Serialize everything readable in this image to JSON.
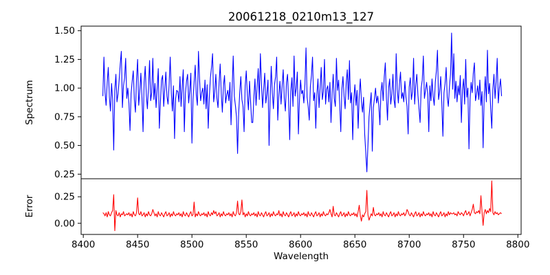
{
  "figure": {
    "title": "20061218_0210m13_127",
    "background": "#ffffff",
    "frame_color": "#000000"
  },
  "chart_data": {
    "type": "line",
    "title": "20061218_0210m13_127",
    "xlabel": "Wavelength",
    "grid": false,
    "legend": null,
    "x_start": 8418,
    "x_step": 1,
    "xlim": [
      8398,
      8803
    ],
    "xticks": [
      {
        "v": 8400,
        "label": "8400"
      },
      {
        "v": 8450,
        "label": "8450"
      },
      {
        "v": 8500,
        "label": "8500"
      },
      {
        "v": 8550,
        "label": "8550"
      },
      {
        "v": 8600,
        "label": "8600"
      },
      {
        "v": 8650,
        "label": "8650"
      },
      {
        "v": 8700,
        "label": "8700"
      },
      {
        "v": 8750,
        "label": "8750"
      },
      {
        "v": 8800,
        "label": "8800"
      }
    ],
    "panels": [
      {
        "name": "spectrum",
        "ylabel": "Spectrum",
        "color": "#0000ff",
        "line_width": 1.1,
        "ylim": [
          0.21,
          1.54
        ],
        "yticks": [
          {
            "v": 0.25,
            "label": "0.25"
          },
          {
            "v": 0.5,
            "label": "0.50"
          },
          {
            "v": 0.75,
            "label": "0.75"
          },
          {
            "v": 1.0,
            "label": "1.00"
          },
          {
            "v": 1.25,
            "label": "1.25"
          },
          {
            "v": 1.5,
            "label": "1.50"
          }
        ],
        "values": [
          0.93,
          1.27,
          0.96,
          0.85,
          1.05,
          1.18,
          0.92,
          0.8,
          1.04,
          0.9,
          0.46,
          0.98,
          1.12,
          0.88,
          0.95,
          1.07,
          1.21,
          1.32,
          0.83,
          1.02,
          1.09,
          1.26,
          0.91,
          1.0,
          0.87,
          0.63,
          0.95,
          1.06,
          1.15,
          0.9,
          0.79,
          1.08,
          1.25,
          0.85,
          0.97,
          1.13,
          0.92,
          0.62,
          1.05,
          1.19,
          0.94,
          0.82,
          1.01,
          1.24,
          0.89,
          0.96,
          1.26,
          0.9,
          1.04,
          0.83,
          1.0,
          1.17,
          0.65,
          0.88,
          1.07,
          1.11,
          0.84,
          0.99,
          1.14,
          0.93,
          0.86,
          1.03,
          1.27,
          0.96,
          0.8,
          1.02,
          0.56,
          0.91,
          0.98,
          0.97,
          0.88,
          1.1,
          0.84,
          1.01,
          1.16,
          0.62,
          0.95,
          1.06,
          1.12,
          0.87,
          0.98,
          1.13,
          0.52,
          0.9,
          1.05,
          1.2,
          0.94,
          0.85,
          1.32,
          1.08,
          0.89,
          0.96,
          1.0,
          0.86,
          1.07,
          0.82,
          1.03,
          0.65,
          0.92,
          1.09,
          1.18,
          1.3,
          0.88,
          0.97,
          1.12,
          0.91,
          0.83,
          1.04,
          1.21,
          0.95,
          0.79,
          1.02,
          1.11,
          0.87,
          0.94,
          0.98,
          0.89,
          1.05,
          0.68,
          1.0,
          1.28,
          0.93,
          0.85,
          0.75,
          0.43,
          0.78,
          0.96,
          1.1,
          0.9,
          0.84,
          0.62,
          1.02,
          1.15,
          0.94,
          0.81,
          1.06,
          0.88,
          0.7,
          0.7,
          0.92,
          1.08,
          0.85,
          1.01,
          1.17,
          0.9,
          1.3,
          1.04,
          0.83,
          0.99,
          1.13,
          0.87,
          0.95,
          1.07,
          0.5,
          0.91,
          1.19,
          0.96,
          0.82,
          1.03,
          1.1,
          1.27,
          0.72,
          0.94,
          1.06,
          0.86,
          1.02,
          1.16,
          0.91,
          0.8,
          1.05,
          1.12,
          0.88,
          0.55,
          0.97,
          1.09,
          0.84,
          1.28,
          0.93,
          1.0,
          1.14,
          0.6,
          0.9,
          1.07,
          0.95,
          0.98,
          0.87,
          1.03,
          1.35,
          0.92,
          0.84,
          0.72,
          1.01,
          1.11,
          1.27,
          0.89,
          0.96,
          0.65,
          0.94,
          1.08,
          0.83,
          1.0,
          1.18,
          0.9,
          0.97,
          1.25,
          0.86,
          0.99,
          1.02,
          0.88,
          1.05,
          0.7,
          0.95,
          1.12,
          0.91,
          0.84,
          1.26,
          0.98,
          1.07,
          0.86,
          0.62,
          0.99,
          1.1,
          0.93,
          0.82,
          1.04,
          1.16,
          0.9,
          1.24,
          0.87,
          0.96,
          0.55,
          0.9,
          1.03,
          0.85,
          0.98,
          0.65,
          0.94,
          1.08,
          0.88,
          0.79,
          0.92,
          0.6,
          0.44,
          0.27,
          0.5,
          0.75,
          0.86,
          0.96,
          0.45,
          0.83,
          0.91,
          1.0,
          0.87,
          0.93,
          0.85,
          0.68,
          0.97,
          1.05,
          0.89,
          1.1,
          1.22,
          0.92,
          0.72,
          1.0,
          1.08,
          0.86,
          0.95,
          1.12,
          0.9,
          0.83,
          1.3,
          0.99,
          0.87,
          1.04,
          1.14,
          0.91,
          0.96,
          0.88,
          1.06,
          0.92,
          0.84,
          0.6,
          1.01,
          1.09,
          0.9,
          0.97,
          1.26,
          0.86,
          1.03,
          1.12,
          0.94,
          0.82,
          0.7,
          1.0,
          1.07,
          1.28,
          0.91,
          0.98,
          1.05,
          0.95,
          0.62,
          1.02,
          0.89,
          1.08,
          0.93,
          0.85,
          1.05,
          1.15,
          1.33,
          0.9,
          0.97,
          1.1,
          0.87,
          0.58,
          0.96,
          1.04,
          1.18,
          0.92,
          0.84,
          1.01,
          1.12,
          1.48,
          0.99,
          1.3,
          0.91,
          1.06,
          0.88,
          1.02,
          0.94,
          1.11,
          0.7,
          0.98,
          1.08,
          0.86,
          1.25,
          0.92,
          1.0,
          0.47,
          0.9,
          1.05,
          0.96,
          1.13,
          1.22,
          0.89,
          0.95,
          1.02,
          0.9,
          1.07,
          0.85,
          0.97,
          0.48,
          0.93,
          1.1,
          0.88,
          1.33,
          0.95,
          1.04,
          0.82,
          0.65,
          0.99,
          1.12,
          0.91,
          1.06,
          1.26,
          0.87,
          1.0,
          1.08,
          0.93
        ]
      },
      {
        "name": "error",
        "ylabel": "Error",
        "color": "#ff0000",
        "line_width": 1.1,
        "ylim": [
          -0.105,
          0.42
        ],
        "yticks": [
          {
            "v": 0.0,
            "label": "0.00"
          },
          {
            "v": 0.25,
            "label": "0.25"
          }
        ],
        "values": [
          0.1,
          0.09,
          0.07,
          0.1,
          0.06,
          0.11,
          0.08,
          0.07,
          0.1,
          0.12,
          0.27,
          -0.07,
          0.12,
          0.08,
          0.07,
          0.1,
          0.06,
          0.09,
          0.08,
          0.11,
          0.07,
          0.08,
          0.09,
          0.08,
          0.1,
          0.07,
          0.09,
          0.06,
          0.11,
          0.08,
          0.07,
          0.1,
          0.24,
          0.09,
          0.08,
          0.11,
          0.07,
          0.08,
          0.1,
          0.06,
          0.09,
          0.07,
          0.11,
          0.08,
          0.07,
          0.09,
          0.13,
          0.1,
          0.07,
          0.09,
          0.06,
          0.11,
          0.08,
          0.07,
          0.1,
          0.08,
          0.06,
          0.09,
          0.11,
          0.07,
          0.08,
          0.1,
          0.06,
          0.09,
          0.07,
          0.11,
          0.08,
          0.07,
          0.09,
          0.08,
          0.1,
          0.07,
          0.09,
          0.06,
          0.11,
          0.08,
          0.07,
          0.1,
          0.08,
          0.06,
          0.09,
          0.11,
          0.07,
          0.08,
          0.2,
          0.06,
          0.09,
          0.07,
          0.11,
          0.08,
          0.07,
          0.09,
          0.08,
          0.1,
          0.07,
          0.09,
          0.06,
          0.11,
          0.08,
          0.07,
          0.1,
          0.08,
          0.12,
          0.09,
          0.11,
          0.07,
          0.08,
          0.1,
          0.06,
          0.09,
          0.07,
          0.11,
          0.08,
          0.07,
          0.09,
          0.08,
          0.1,
          0.07,
          0.09,
          0.06,
          0.11,
          0.08,
          0.07,
          0.1,
          0.21,
          0.09,
          0.08,
          0.11,
          0.22,
          0.08,
          0.1,
          0.06,
          0.09,
          0.07,
          0.11,
          0.08,
          0.07,
          0.09,
          0.08,
          0.1,
          0.07,
          0.09,
          0.06,
          0.11,
          0.08,
          0.07,
          0.1,
          0.08,
          0.06,
          0.09,
          0.11,
          0.07,
          0.08,
          0.1,
          0.06,
          0.09,
          0.07,
          0.11,
          0.08,
          0.07,
          0.09,
          0.08,
          0.12,
          0.07,
          0.09,
          0.06,
          0.11,
          0.08,
          0.07,
          0.1,
          0.08,
          0.06,
          0.09,
          0.11,
          0.07,
          0.08,
          0.1,
          0.06,
          0.09,
          0.07,
          0.11,
          0.08,
          0.07,
          0.09,
          0.08,
          0.1,
          0.07,
          0.09,
          0.06,
          0.11,
          0.08,
          0.07,
          0.1,
          0.08,
          0.06,
          0.09,
          0.11,
          0.07,
          0.08,
          0.1,
          0.06,
          0.09,
          0.07,
          0.11,
          0.08,
          0.07,
          0.09,
          0.08,
          0.1,
          0.13,
          0.09,
          0.06,
          0.16,
          0.08,
          0.07,
          0.1,
          0.08,
          0.06,
          0.09,
          0.11,
          0.07,
          0.08,
          0.1,
          0.06,
          0.09,
          0.07,
          0.11,
          0.08,
          0.07,
          0.09,
          0.08,
          0.1,
          0.07,
          0.09,
          0.06,
          0.11,
          0.17,
          0.07,
          0.02,
          0.08,
          0.06,
          0.09,
          0.11,
          0.31,
          0.08,
          0.03,
          0.06,
          0.09,
          0.07,
          0.15,
          0.08,
          0.07,
          0.09,
          0.08,
          0.1,
          0.07,
          0.09,
          0.06,
          0.11,
          0.08,
          0.07,
          0.1,
          0.08,
          0.06,
          0.09,
          0.11,
          0.07,
          0.08,
          0.1,
          0.06,
          0.09,
          0.07,
          0.11,
          0.08,
          0.07,
          0.09,
          0.08,
          0.1,
          0.07,
          0.09,
          0.13,
          0.11,
          0.08,
          0.07,
          0.1,
          0.08,
          0.06,
          0.09,
          0.11,
          0.07,
          0.08,
          0.1,
          0.06,
          0.09,
          0.07,
          0.11,
          0.08,
          0.07,
          0.09,
          0.08,
          0.1,
          0.07,
          0.09,
          0.06,
          0.11,
          0.08,
          0.07,
          0.1,
          0.08,
          0.06,
          0.09,
          0.11,
          0.07,
          0.08,
          0.1,
          0.06,
          0.09,
          0.07,
          0.11,
          0.08,
          0.1,
          0.09,
          0.09,
          0.1,
          0.08,
          0.09,
          0.07,
          0.11,
          0.09,
          0.08,
          0.1,
          0.09,
          0.07,
          0.1,
          0.12,
          0.08,
          0.09,
          0.11,
          0.07,
          0.1,
          0.13,
          0.18,
          0.1,
          0.09,
          0.11,
          0.1,
          0.12,
          0.09,
          0.26,
          0.11,
          -0.02,
          0.1,
          0.13,
          0.09,
          0.12,
          0.1,
          0.14,
          0.11,
          0.4,
          0.1,
          0.08,
          0.11,
          0.09,
          0.1,
          0.08,
          0.09,
          0.1,
          0.09
        ]
      }
    ]
  }
}
